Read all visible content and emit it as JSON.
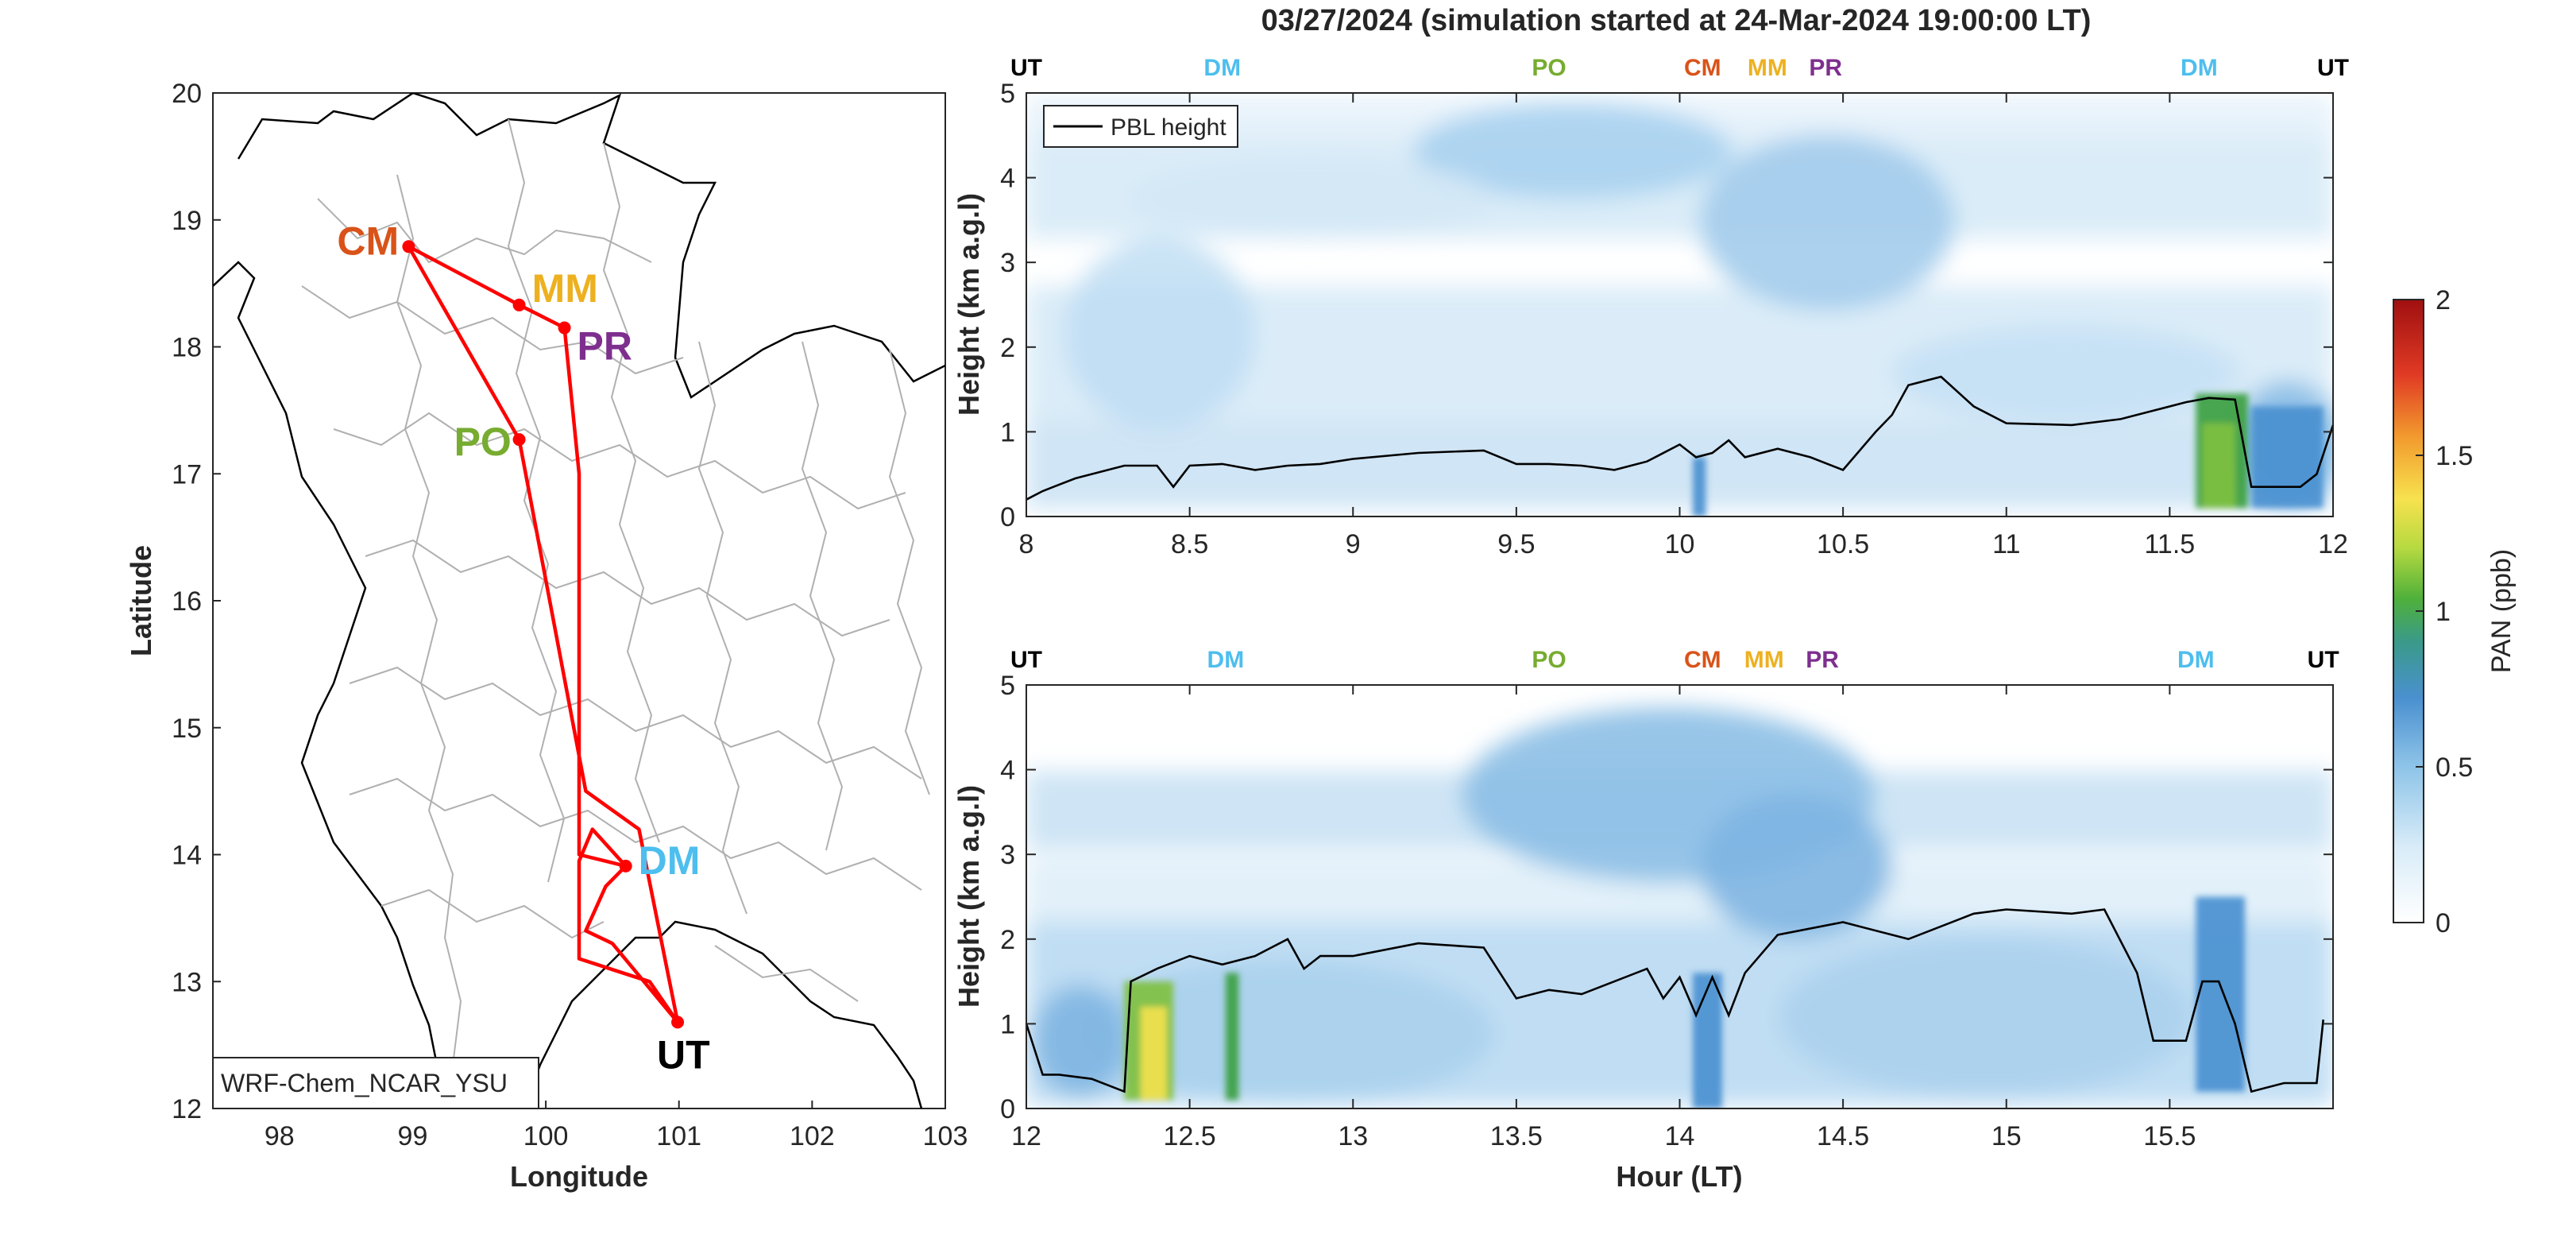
{
  "title": "03/27/2024 (simulation started at 24-Mar-2024 19:00:00 LT)",
  "colors": {
    "CM": "#d95319",
    "MM": "#edb120",
    "PR": "#7e2f8e",
    "PO": "#77ac30",
    "DM": "#4dbeee",
    "UT": "#000000",
    "route": "#ff0000",
    "pbl": "#000000",
    "borders": "#b0b0b0"
  },
  "map": {
    "xlabel": "Longitude",
    "ylabel": "Latitude",
    "model_label": "WRF-Chem_NCAR_YSU",
    "xlim": [
      97.5,
      103
    ],
    "ylim": [
      12,
      20
    ],
    "xticks": [
      "98",
      "99",
      "100",
      "101",
      "102",
      "103"
    ],
    "yticks": [
      "12",
      "13",
      "14",
      "15",
      "16",
      "17",
      "18",
      "19",
      "20"
    ],
    "sites": [
      {
        "code": "CM",
        "lon": 98.97,
        "lat": 18.79
      },
      {
        "code": "MM",
        "lon": 99.8,
        "lat": 18.33
      },
      {
        "code": "PR",
        "lon": 100.14,
        "lat": 18.15
      },
      {
        "code": "PO",
        "lon": 99.8,
        "lat": 17.27
      },
      {
        "code": "DM",
        "lon": 100.6,
        "lat": 13.91
      },
      {
        "code": "UT",
        "lon": 100.99,
        "lat": 12.68
      }
    ],
    "route": [
      [
        100.99,
        12.68
      ],
      [
        100.78,
        13.0
      ],
      [
        100.25,
        13.18
      ],
      [
        100.25,
        13.95
      ],
      [
        100.35,
        14.2
      ],
      [
        100.6,
        13.91
      ],
      [
        100.45,
        13.75
      ],
      [
        100.3,
        13.4
      ],
      [
        100.5,
        13.3
      ],
      [
        100.99,
        12.68
      ],
      [
        100.7,
        14.2
      ],
      [
        100.3,
        14.5
      ],
      [
        99.8,
        17.27
      ],
      [
        98.97,
        18.79
      ],
      [
        99.8,
        18.33
      ],
      [
        100.14,
        18.15
      ],
      [
        100.25,
        17.0
      ],
      [
        100.25,
        14.0
      ],
      [
        100.6,
        13.91
      ]
    ]
  },
  "chart_data": [
    {
      "type": "heatmap",
      "variable": "PAN (ppb)",
      "xlim": [
        8,
        12
      ],
      "ylim": [
        0,
        5
      ],
      "xticks": [
        "8",
        "8.5",
        "9",
        "9.5",
        "10",
        "10.5",
        "11",
        "11.5",
        "12"
      ],
      "yticks": [
        "0",
        "1",
        "2",
        "3",
        "4",
        "5"
      ],
      "ylabel": "Height (km a.g.l)",
      "legend": "PBL height",
      "legend_location": "top-left",
      "site_markers": [
        {
          "label": "UT",
          "x": 8.0
        },
        {
          "label": "DM",
          "x": 8.6
        },
        {
          "label": "PO",
          "x": 9.6
        },
        {
          "label": "CM",
          "x": 10.07
        },
        {
          "label": "MM",
          "x": 10.3
        },
        {
          "label": "PR",
          "x": 10.43
        },
        {
          "label": "DM",
          "x": 11.59
        },
        {
          "label": "UT",
          "x": 12.0
        }
      ],
      "pbl_height": {
        "x": [
          8.0,
          8.05,
          8.15,
          8.3,
          8.4,
          8.45,
          8.5,
          8.6,
          8.7,
          8.8,
          8.9,
          9.0,
          9.2,
          9.4,
          9.5,
          9.6,
          9.7,
          9.8,
          9.9,
          10.0,
          10.05,
          10.1,
          10.15,
          10.2,
          10.3,
          10.4,
          10.5,
          10.6,
          10.65,
          10.7,
          10.8,
          10.9,
          11.0,
          11.2,
          11.35,
          11.45,
          11.55,
          11.62,
          11.7,
          11.75,
          11.9,
          11.95,
          12.0
        ],
        "y": [
          0.2,
          0.3,
          0.45,
          0.6,
          0.6,
          0.35,
          0.6,
          0.62,
          0.55,
          0.6,
          0.62,
          0.68,
          0.75,
          0.78,
          0.62,
          0.62,
          0.6,
          0.55,
          0.65,
          0.85,
          0.7,
          0.75,
          0.9,
          0.7,
          0.8,
          0.7,
          0.55,
          1.0,
          1.2,
          1.55,
          1.65,
          1.3,
          1.1,
          1.08,
          1.15,
          1.25,
          1.35,
          1.4,
          1.38,
          0.35,
          0.35,
          0.5,
          1.08
        ]
      },
      "hotspots": [
        {
          "x": [
            10.04,
            10.08
          ],
          "z": [
            0,
            0.7
          ],
          "value": 0.6
        },
        {
          "x": [
            11.58,
            11.74
          ],
          "z": [
            0.1,
            1.45
          ],
          "value": 0.8
        },
        {
          "x": [
            11.6,
            11.7
          ],
          "z": [
            0.1,
            1.1
          ],
          "value": 1.0
        },
        {
          "x": [
            11.75,
            11.97
          ],
          "z": [
            0.1,
            1.3
          ],
          "value": 0.55
        }
      ]
    },
    {
      "type": "heatmap",
      "variable": "PAN (ppb)",
      "xlim": [
        12,
        16
      ],
      "ylim": [
        0,
        5
      ],
      "xticks": [
        "12",
        "12.5",
        "13",
        "13.5",
        "14",
        "14.5",
        "15",
        "15.5"
      ],
      "yticks": [
        "0",
        "1",
        "2",
        "3",
        "4",
        "5"
      ],
      "xlabel": "Hour (LT)",
      "ylabel": "Height (km a.g.l)",
      "site_markers": [
        {
          "label": "UT",
          "x": 12.0
        },
        {
          "label": "DM",
          "x": 12.61
        },
        {
          "label": "PO",
          "x": 13.6
        },
        {
          "label": "CM",
          "x": 14.07
        },
        {
          "label": "MM",
          "x": 14.29
        },
        {
          "label": "PR",
          "x": 14.42
        },
        {
          "label": "DM",
          "x": 15.58
        },
        {
          "label": "UT",
          "x": 15.97
        }
      ],
      "pbl_height": {
        "x": [
          12.0,
          12.05,
          12.1,
          12.2,
          12.3,
          12.32,
          12.4,
          12.5,
          12.6,
          12.7,
          12.8,
          12.85,
          12.9,
          13.0,
          13.2,
          13.4,
          13.45,
          13.5,
          13.6,
          13.7,
          13.8,
          13.9,
          13.95,
          14.0,
          14.05,
          14.1,
          14.15,
          14.2,
          14.3,
          14.5,
          14.7,
          14.9,
          15.0,
          15.2,
          15.3,
          15.4,
          15.45,
          15.55,
          15.6,
          15.65,
          15.7,
          15.75,
          15.85,
          15.95,
          15.97
        ],
        "y": [
          1.0,
          0.4,
          0.4,
          0.35,
          0.2,
          1.5,
          1.65,
          1.8,
          1.7,
          1.8,
          2.0,
          1.65,
          1.8,
          1.8,
          1.95,
          1.9,
          1.6,
          1.3,
          1.4,
          1.35,
          1.5,
          1.65,
          1.3,
          1.55,
          1.1,
          1.55,
          1.1,
          1.6,
          2.05,
          2.2,
          2.0,
          2.3,
          2.35,
          2.3,
          2.35,
          1.6,
          0.8,
          0.8,
          1.5,
          1.5,
          1.0,
          0.2,
          0.3,
          0.3,
          1.05
        ]
      },
      "hotspots": [
        {
          "x": [
            12.3,
            12.45
          ],
          "z": [
            0.1,
            1.5
          ],
          "value": 0.9
        },
        {
          "x": [
            12.35,
            12.43
          ],
          "z": [
            0.1,
            1.2
          ],
          "value": 1.15
        },
        {
          "x": [
            12.61,
            12.65
          ],
          "z": [
            0.1,
            1.6
          ],
          "value": 0.8
        },
        {
          "x": [
            14.04,
            14.13
          ],
          "z": [
            0,
            1.6
          ],
          "value": 0.55
        },
        {
          "x": [
            15.58,
            15.73
          ],
          "z": [
            0.2,
            2.5
          ],
          "value": 0.45
        }
      ]
    }
  ],
  "colorbar": {
    "label": "PAN (ppb)",
    "ticks": [
      "0",
      "0.5",
      "1",
      "1.5",
      "2"
    ],
    "range": [
      0,
      2
    ]
  }
}
